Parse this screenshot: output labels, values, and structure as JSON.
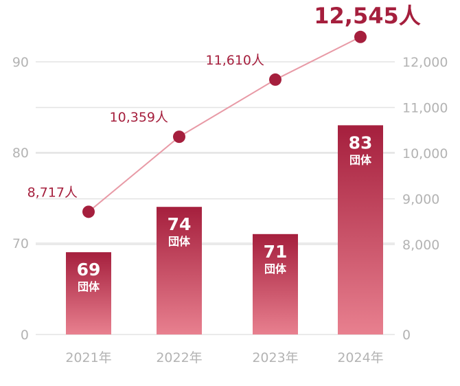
{
  "chart_data": {
    "type": "bar+line",
    "categories": [
      "2021年",
      "2022年",
      "2023年",
      "2024年"
    ],
    "series": [
      {
        "name": "団体",
        "type": "bar",
        "axis": "left",
        "values": [
          69,
          74,
          71,
          83
        ],
        "labels": [
          "69",
          "74",
          "71",
          "83"
        ],
        "unit": "団体"
      },
      {
        "name": "人",
        "type": "line",
        "axis": "right",
        "values": [
          8717,
          10359,
          11610,
          12545
        ],
        "labels": [
          "8,717人",
          "10,359人",
          "11,610人",
          "12,545人"
        ]
      }
    ],
    "left_ticks": [
      "90",
      "80",
      "70",
      "0"
    ],
    "right_ticks": [
      "12,000",
      "11,000",
      "10,000",
      "9,000",
      "8,000",
      "0"
    ],
    "left_axis_broken": true,
    "right_axis_broken": true,
    "colors": {
      "bar_top": "#a51f3d",
      "bar_bottom": "#e8808f",
      "line": "#e89aa6",
      "point": "#a51f3d",
      "grid": "#e3e3e3"
    }
  }
}
